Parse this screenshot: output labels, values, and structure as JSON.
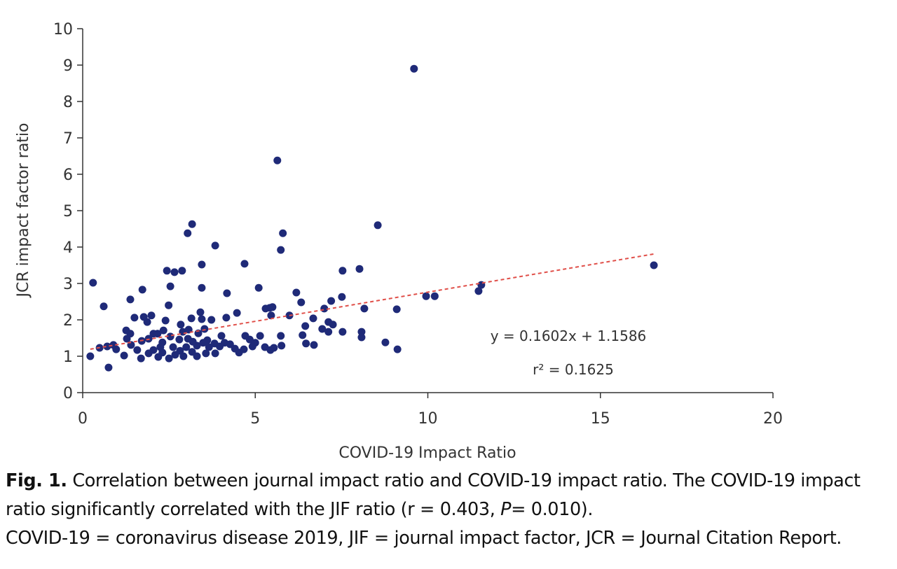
{
  "chart_data": {
    "type": "scatter",
    "x_label": "COVID-19 Impact Ratio",
    "y_label": "JCR impact factor ratio",
    "xlim": [
      0,
      20
    ],
    "xticks": [
      0,
      5,
      10,
      15,
      20
    ],
    "ylim": [
      0,
      10
    ],
    "yticks": [
      0,
      1,
      2,
      3,
      4,
      5,
      6,
      7,
      8,
      9,
      10
    ],
    "grid": false,
    "color": "#1f2a78",
    "x": [
      0.22,
      0.3,
      0.61,
      0.75,
      0.71,
      9.6,
      5.64,
      16.55,
      8.55,
      5.8,
      5.74,
      3.17,
      3.04,
      3.84,
      4.69,
      3.45,
      2.44,
      2.66,
      2.88,
      7.53,
      8.02,
      5.1,
      3.45,
      2.54,
      1.73,
      4.18,
      6.19,
      1.38,
      6.33,
      7.51,
      7.2,
      8.16,
      9.1,
      9.95,
      10.2,
      11.47,
      11.55,
      2.49,
      5.3,
      5.5,
      3.41,
      4.47,
      5.99,
      7.0,
      1.5,
      1.77,
      1.99,
      1.87,
      2.4,
      3.15,
      3.45,
      3.73,
      4.16,
      5.46,
      6.68,
      7.12,
      7.25,
      6.94,
      7.12,
      7.53,
      8.08,
      6.45,
      6.37,
      6.47,
      6.7,
      5.74,
      5.76,
      5.54,
      5.44,
      5.28,
      5.14,
      4.84,
      4.71,
      5.0,
      4.67,
      4.53,
      4.41,
      4.27,
      4.11,
      3.97,
      3.82,
      3.66,
      3.49,
      3.31,
      3.31,
      3.17,
      3.0,
      2.82,
      2.62,
      2.5,
      2.68,
      2.31,
      2.19,
      2.05,
      1.91,
      1.69,
      1.58,
      1.4,
      1.28,
      1.26,
      1.38,
      1.2,
      0.97,
      0.89,
      0.49,
      2.9,
      3.07,
      3.35,
      3.53,
      2.84,
      2.34,
      2.17,
      1.91,
      1.71,
      2.54,
      2.8,
      3.05,
      3.19,
      3.61,
      4.02,
      2.31,
      9.12,
      8.77,
      8.08,
      2.25,
      2.05,
      3.84,
      2.92,
      3.57,
      4.92,
      5.42
    ],
    "values": [
      1.0,
      3.02,
      2.37,
      0.69,
      1.27,
      8.9,
      6.38,
      3.5,
      4.6,
      4.38,
      3.92,
      4.63,
      4.38,
      4.04,
      3.54,
      3.52,
      3.35,
      3.31,
      3.35,
      3.35,
      3.4,
      2.88,
      2.88,
      2.92,
      2.83,
      2.73,
      2.75,
      2.56,
      2.48,
      2.63,
      2.52,
      2.31,
      2.29,
      2.65,
      2.65,
      2.79,
      2.96,
      2.4,
      2.31,
      2.35,
      2.21,
      2.19,
      2.12,
      2.31,
      2.06,
      2.08,
      2.12,
      1.94,
      1.98,
      2.04,
      2.02,
      2.0,
      2.06,
      2.12,
      2.04,
      1.94,
      1.87,
      1.75,
      1.67,
      1.67,
      1.67,
      1.83,
      1.58,
      1.35,
      1.31,
      1.56,
      1.29,
      1.23,
      1.17,
      1.25,
      1.56,
      1.46,
      1.56,
      1.37,
      1.19,
      1.1,
      1.21,
      1.33,
      1.37,
      1.27,
      1.35,
      1.25,
      1.37,
      1.29,
      1.0,
      1.12,
      1.25,
      1.15,
      1.25,
      0.94,
      1.04,
      1.1,
      0.98,
      1.17,
      1.08,
      0.94,
      1.17,
      1.31,
      1.48,
      1.71,
      1.62,
      1.02,
      1.19,
      1.31,
      1.23,
      1.67,
      1.73,
      1.63,
      1.75,
      1.87,
      1.71,
      1.62,
      1.48,
      1.42,
      1.54,
      1.46,
      1.48,
      1.4,
      1.44,
      1.56,
      1.38,
      1.19,
      1.38,
      1.52,
      1.25,
      1.62,
      1.08,
      1.0,
      1.08,
      1.27,
      2.33
    ],
    "trendline": {
      "slope": 0.1602,
      "intercept": 1.1586,
      "color": "#e0504a"
    },
    "annotations": [
      "y = 0.1602x + 1.1586",
      "r² = 0.1625"
    ]
  },
  "caption": {
    "label": "Fig. 1.",
    "text_1": "Correlation between journal impact ratio and COVID-19 impact ratio. The COVID-19 impact ratio significantly correlated with the JIF ratio (r = 0.403,",
    "italic": "P",
    "text_2": "= 0.010).",
    "footnote": "COVID-19 = coronavirus disease 2019, JIF = journal impact factor, JCR = Journal Citation Report."
  }
}
